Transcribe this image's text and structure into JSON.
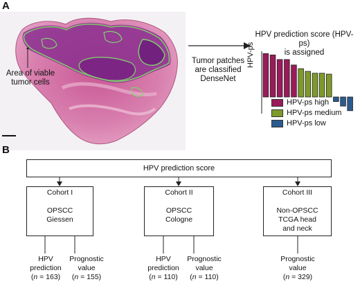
{
  "panel_a": {
    "letter": "A",
    "tissue_label_line1": "Area of viable",
    "tissue_label_line2": "tumor cells",
    "arrow_label_line1": "Tumor patches",
    "arrow_label_line2": "are classified",
    "arrow_label_line3": "DenseNet",
    "chart_title_line1": "HPV prediction score (HPV-ps)",
    "chart_title_line2": "is assigned",
    "chart_ylabel": "HPV-ps",
    "legend": [
      {
        "label": "HPV-ps high",
        "color": "#9b1a5a"
      },
      {
        "label": "HPV-ps medium",
        "color": "#7f9a2b"
      },
      {
        "label": "HPV-ps low",
        "color": "#2a5b8e"
      }
    ]
  },
  "chart_data": {
    "type": "bar",
    "ylabel": "HPV-ps",
    "values": [
      0.95,
      0.92,
      0.82,
      0.82,
      0.7,
      0.62,
      0.56,
      0.52,
      0.52,
      0.5,
      -0.1,
      -0.2,
      -0.3
    ],
    "groups": [
      "high",
      "high",
      "high",
      "high",
      "high",
      "medium",
      "medium",
      "medium",
      "medium",
      "medium",
      "low",
      "low",
      "low"
    ],
    "colors": {
      "high": "#9b1a5a",
      "medium": "#7f9a2b",
      "low": "#2a5b8e"
    }
  },
  "panel_b": {
    "letter": "B",
    "top_box": "HPV prediction score",
    "cohorts": [
      {
        "title": "Cohort I",
        "line1": "OPSCC",
        "line2": "Giessen",
        "line3": ""
      },
      {
        "title": "Cohort II",
        "line1": "OPSCC",
        "line2": "Cologne",
        "line3": ""
      },
      {
        "title": "Cohort III",
        "line1": "Non-OPSCC",
        "line2": "TCGA head",
        "line3": "and neck"
      }
    ],
    "outcomes": [
      {
        "line1": "HPV",
        "line2": "prediction",
        "n": "163"
      },
      {
        "line1": "Prognostic",
        "line2": "value",
        "n": "155"
      },
      {
        "line1": "HPV",
        "line2": "prediction",
        "n": "110"
      },
      {
        "line1": "Prognostic",
        "line2": "value",
        "n": "110"
      },
      {
        "line1": "Prognostic",
        "line2": "value",
        "n": "329"
      }
    ]
  }
}
